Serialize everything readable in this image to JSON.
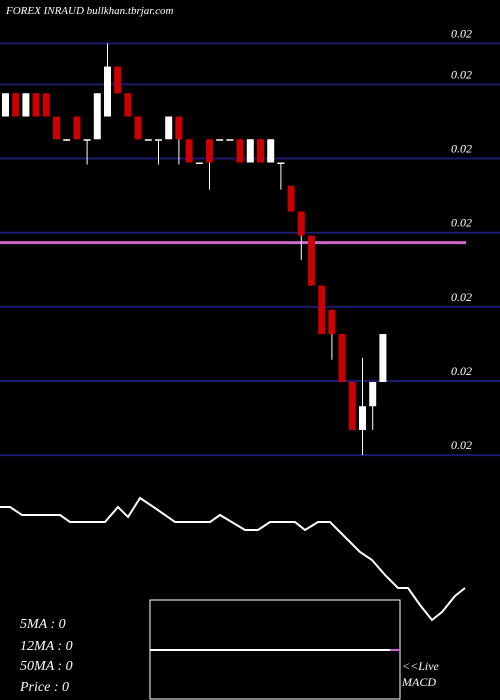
{
  "chart_data": [
    {
      "type": "candlestick",
      "title": "FOREX  INRAUD bullkhan.tbrjar.com",
      "open": [
        0.020235,
        0.020282,
        0.020235,
        0.020282,
        0.020282,
        0.020235,
        0.020186,
        0.020235,
        0.020189,
        0.020189,
        0.020235,
        0.020336,
        0.020282,
        0.020235,
        0.020189,
        0.020189,
        0.020189,
        0.020235,
        0.020189,
        0.020142,
        0.020189,
        0.020189,
        0.020189,
        0.020189,
        0.020142,
        0.020189,
        0.020142,
        0.020142,
        0.020095,
        0.020043,
        0.019994,
        0.019893,
        0.019844,
        0.019795,
        0.019698,
        0.019601,
        0.019649,
        0.019698
      ],
      "high": [
        0.020282,
        0.020282,
        0.020282,
        0.020282,
        0.020282,
        0.020235,
        0.020189,
        0.020235,
        0.020189,
        0.020282,
        0.020383,
        0.020336,
        0.020282,
        0.020235,
        0.020189,
        0.020189,
        0.020235,
        0.020235,
        0.020189,
        0.020142,
        0.020189,
        0.020189,
        0.020189,
        0.020189,
        0.020189,
        0.020189,
        0.020189,
        0.020142,
        0.020095,
        0.020043,
        0.019994,
        0.019893,
        0.019844,
        0.019795,
        0.019698,
        0.019747,
        0.019698,
        0.019795
      ],
      "low": [
        0.020235,
        0.020235,
        0.020235,
        0.020235,
        0.020235,
        0.020189,
        0.020186,
        0.020189,
        0.020138,
        0.020189,
        0.020235,
        0.020282,
        0.020235,
        0.020189,
        0.020189,
        0.020138,
        0.020189,
        0.020138,
        0.020142,
        0.020142,
        0.020087,
        0.020189,
        0.020189,
        0.020142,
        0.020142,
        0.020142,
        0.020142,
        0.020087,
        0.020043,
        0.019945,
        0.019893,
        0.019795,
        0.019743,
        0.019698,
        0.019601,
        0.01955,
        0.019601,
        0.019698
      ],
      "close": [
        0.020282,
        0.020235,
        0.020282,
        0.020235,
        0.020235,
        0.020189,
        0.020189,
        0.020189,
        0.020189,
        0.020282,
        0.020336,
        0.020282,
        0.020235,
        0.020189,
        0.020189,
        0.020189,
        0.020235,
        0.020189,
        0.020142,
        0.020142,
        0.020142,
        0.020189,
        0.020189,
        0.020142,
        0.020189,
        0.020142,
        0.020189,
        0.020142,
        0.020043,
        0.019994,
        0.019893,
        0.019795,
        0.019795,
        0.019698,
        0.019601,
        0.019649,
        0.019698,
        0.019795
      ],
      "up_color": "#ffffff",
      "down_color": "#cc0000",
      "ylim": [
        0.01952,
        0.02041
      ],
      "yticks": [
        {
          "value": 0.020383,
          "label": "0.02"
        },
        {
          "value": 0.0203,
          "label": "0.02"
        },
        {
          "value": 0.02015,
          "label": "0.02"
        },
        0.02,
        {
          "value": 0.01985,
          "label": "0.02"
        },
        {
          "value": 0.0197,
          "label": "0.02"
        },
        {
          "value": 0.01955,
          "label": "0.02"
        }
      ],
      "grid": true,
      "grid_color": "#1c1c6e",
      "hline": 0.01998,
      "hline_color": "#cc66cc",
      "legend": [
        "5MA : 0",
        "12MA : 0",
        "50MA : 0",
        "Price  : 0"
      ]
    },
    {
      "type": "line",
      "color": "#ffffff",
      "x": [
        0,
        10,
        22,
        60,
        70,
        105,
        118,
        128,
        140,
        155,
        175,
        210,
        220,
        245,
        258,
        270,
        295,
        305,
        318,
        330,
        345,
        360,
        372,
        385,
        398,
        408,
        420,
        432,
        442,
        455,
        465
      ],
      "values": [
        113,
        113,
        105,
        105,
        98,
        98,
        113,
        103,
        122,
        112,
        98,
        98,
        105,
        90,
        90,
        98,
        98,
        90,
        98,
        98,
        83,
        68,
        60,
        45,
        32,
        32,
        15,
        0,
        8,
        24,
        32
      ],
      "xlim": [
        0,
        500
      ],
      "ylim": [
        0,
        125
      ]
    },
    {
      "type": "macd",
      "labels": [
        "<<Live",
        "MACD"
      ]
    }
  ]
}
